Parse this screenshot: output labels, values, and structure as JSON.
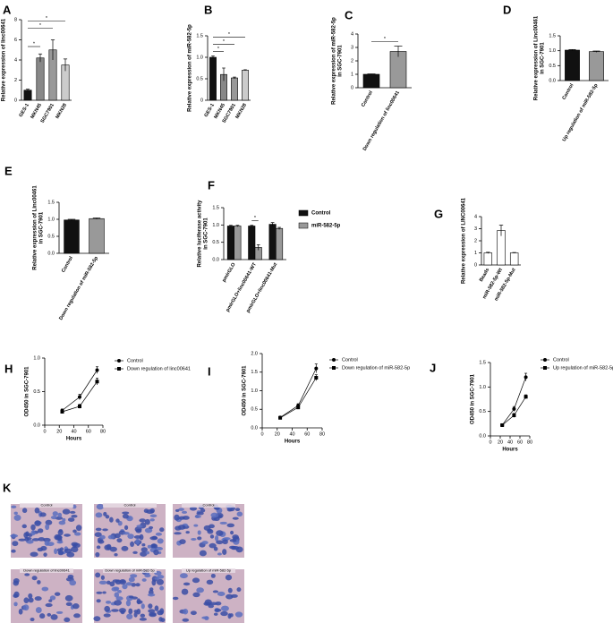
{
  "chart_data": [
    {
      "label": "A",
      "type": "bar",
      "y_label": [
        "Relative expression of linc00641"
      ],
      "categories": [
        "GES-1",
        "MKN45",
        "SGC7901",
        "MKN28"
      ],
      "values": [
        1.0,
        4.2,
        5.0,
        3.5
      ],
      "errors": [
        0.1,
        0.4,
        1.0,
        0.6
      ],
      "colors": [
        "#111111",
        "#888888",
        "#999999",
        "#cccccc"
      ],
      "ylim": [
        0,
        8
      ],
      "yticks": [
        0,
        2,
        4,
        6,
        8
      ],
      "annotations": [
        "*",
        "*",
        "*"
      ]
    },
    {
      "label": "B",
      "type": "bar",
      "y_label": [
        "Relative expression of miR-582-5p"
      ],
      "categories": [
        "GES-1",
        "MKN45",
        "SGC7901",
        "MKN28"
      ],
      "values": [
        1.0,
        0.6,
        0.52,
        0.7
      ],
      "errors": [
        0.03,
        0.15,
        0.02,
        0.01
      ],
      "colors": [
        "#111111",
        "#888888",
        "#999999",
        "#cccccc"
      ],
      "ylim": [
        0,
        1.5
      ],
      "yticks": [
        0,
        0.5,
        {
          "value": 1,
          "label": "1.0"
        },
        1.5
      ],
      "annotations": [
        "*",
        "*",
        "*"
      ]
    },
    {
      "label": "C",
      "type": "bar",
      "y_label": [
        "Relative expression of miR-582-5p",
        "in SGC-7901"
      ],
      "categories": [
        "Control",
        "Down regulation of linc00641"
      ],
      "values": [
        1.0,
        2.7
      ],
      "errors": [
        0.03,
        0.4
      ],
      "colors": [
        "#111111",
        "#999999"
      ],
      "ylim": [
        0,
        4
      ],
      "yticks": [
        0,
        1,
        2,
        3,
        4
      ],
      "annotations": [
        "*"
      ]
    },
    {
      "label": "D",
      "type": "bar",
      "y_label": [
        "Relative expression of Linc00461",
        "in SGC-7901"
      ],
      "categories": [
        "Control",
        "Up regulation of miR-582-5p"
      ],
      "values": [
        1.02,
        0.97
      ],
      "errors": [
        0.02,
        0.02
      ],
      "colors": [
        "#111111",
        "#999999"
      ],
      "ylim": [
        0,
        1.5
      ],
      "yticks": [
        {
          "value": 0,
          "label": "0.0"
        },
        0.5,
        {
          "value": 1,
          "label": "1.0"
        },
        1.5
      ]
    },
    {
      "label": "E",
      "type": "bar",
      "y_label": [
        "Relative expression of Linc00461",
        "in SGC-7901"
      ],
      "categories": [
        "Control",
        "Down regulation of miR-582-5p"
      ],
      "values": [
        0.98,
        1.02
      ],
      "errors": [
        0.02,
        0.02
      ],
      "colors": [
        "#111111",
        "#999999"
      ],
      "ylim": [
        0,
        1.5
      ],
      "yticks": [
        {
          "value": 0,
          "label": "0.0"
        },
        0.5,
        {
          "value": 1,
          "label": "1.0"
        },
        1.5
      ]
    },
    {
      "label": "F",
      "type": "bar",
      "y_label": [
        "Relative luciferase activity",
        "in SGC-7901"
      ],
      "categories": [
        "pmirGLO",
        "pmirGLO+linc00641-WT",
        "pmirGLO+linc00641-Mut"
      ],
      "series": [
        {
          "name": "Control",
          "color": "#111111",
          "values": [
            0.97,
            0.97,
            1.02
          ],
          "errors": [
            0.02,
            0.02,
            0.05
          ]
        },
        {
          "name": "miR-582-5p",
          "color": "#999999",
          "values": [
            0.97,
            0.35,
            0.9
          ],
          "errors": [
            0.02,
            0.08,
            0.03
          ]
        }
      ],
      "ylim": [
        0,
        1.5
      ],
      "yticks": [
        {
          "value": 0,
          "label": "0.0"
        },
        0.5,
        {
          "value": 1,
          "label": "1.0"
        },
        1.5
      ],
      "annotations": [
        "*"
      ]
    },
    {
      "label": "G",
      "type": "bar",
      "y_label": [
        "Relative expression of LINC00641"
      ],
      "categories": [
        "Beads",
        "miR-582-5p-Wt",
        "miR-582-5p-Mut"
      ],
      "values": [
        1.0,
        2.85,
        1.0
      ],
      "errors": [
        0.05,
        0.45,
        0.03
      ],
      "colors": [
        "#ffffff",
        "#ffffff",
        "#ffffff"
      ],
      "ylim": [
        0,
        4
      ],
      "yticks": [
        0,
        1,
        2,
        3,
        4
      ]
    },
    {
      "label": "H",
      "type": "line",
      "y_label": [
        "OD450 in SGC-7901"
      ],
      "x_label": "Hours",
      "x": [
        24,
        48,
        72
      ],
      "series": [
        {
          "name": "Control",
          "color": "#000000",
          "marker": "circle",
          "values": [
            0.22,
            0.42,
            0.82
          ],
          "errors": [
            0.02,
            0.04,
            0.05
          ]
        },
        {
          "name": "Down regulation of linc00641",
          "color": "#000000",
          "marker": "square",
          "values": [
            0.2,
            0.28,
            0.65
          ],
          "errors": [
            0.02,
            0.03,
            0.05
          ]
        }
      ],
      "xlim": [
        0,
        80
      ],
      "xticks": [
        0,
        20,
        40,
        60,
        80
      ],
      "ylim": [
        0,
        1
      ],
      "yticks": [
        {
          "value": 0,
          "label": "0.0"
        },
        0.5,
        {
          "value": 1,
          "label": "1.0"
        }
      ]
    },
    {
      "label": "I",
      "type": "line",
      "y_label": [
        "OD450 in SGC-7901"
      ],
      "x_label": "Hours",
      "x": [
        24,
        48,
        72
      ],
      "series": [
        {
          "name": "Control",
          "color": "#000000",
          "marker": "circle",
          "values": [
            0.28,
            0.6,
            1.6
          ],
          "errors": [
            0.02,
            0.05,
            0.12
          ]
        },
        {
          "name": "Down regulation of miR-582-5p",
          "color": "#000000",
          "marker": "square",
          "values": [
            0.27,
            0.55,
            1.35
          ],
          "errors": [
            0.02,
            0.04,
            0.08
          ]
        }
      ],
      "xlim": [
        0,
        80
      ],
      "xticks": [
        0,
        20,
        40,
        60,
        80
      ],
      "ylim": [
        0,
        2
      ],
      "yticks": [
        {
          "value": 0,
          "label": "0.0"
        },
        0.5,
        {
          "value": 1,
          "label": "1.0"
        },
        1.5,
        {
          "value": 2,
          "label": "2.0"
        }
      ]
    },
    {
      "label": "J",
      "type": "line",
      "y_label": [
        "OD450 in SGC-7901"
      ],
      "x_label": "Hours",
      "x": [
        24,
        48,
        72
      ],
      "series": [
        {
          "name": "Control",
          "color": "#000000",
          "marker": "circle",
          "values": [
            0.22,
            0.55,
            1.2
          ],
          "errors": [
            0.02,
            0.05,
            0.08
          ]
        },
        {
          "name": "Up regulation of miR-582-5p",
          "color": "#000000",
          "marker": "square",
          "values": [
            0.22,
            0.42,
            0.8
          ],
          "errors": [
            0.02,
            0.04,
            0.04
          ]
        }
      ],
      "xlim": [
        0,
        80
      ],
      "xticks": [
        0,
        20,
        40,
        60,
        80
      ],
      "ylim": [
        0,
        1.5
      ],
      "yticks": [
        {
          "value": 0,
          "label": "0.0"
        },
        0.5,
        {
          "value": 1,
          "label": "1.0"
        },
        1.5
      ]
    }
  ],
  "images": {
    "label": "K",
    "captions": [
      "Control",
      "Control",
      "Control",
      "Down regulation of linc00641",
      "Down regulation of miR-582-5p",
      "Up regulation of miR-582-5p"
    ]
  }
}
